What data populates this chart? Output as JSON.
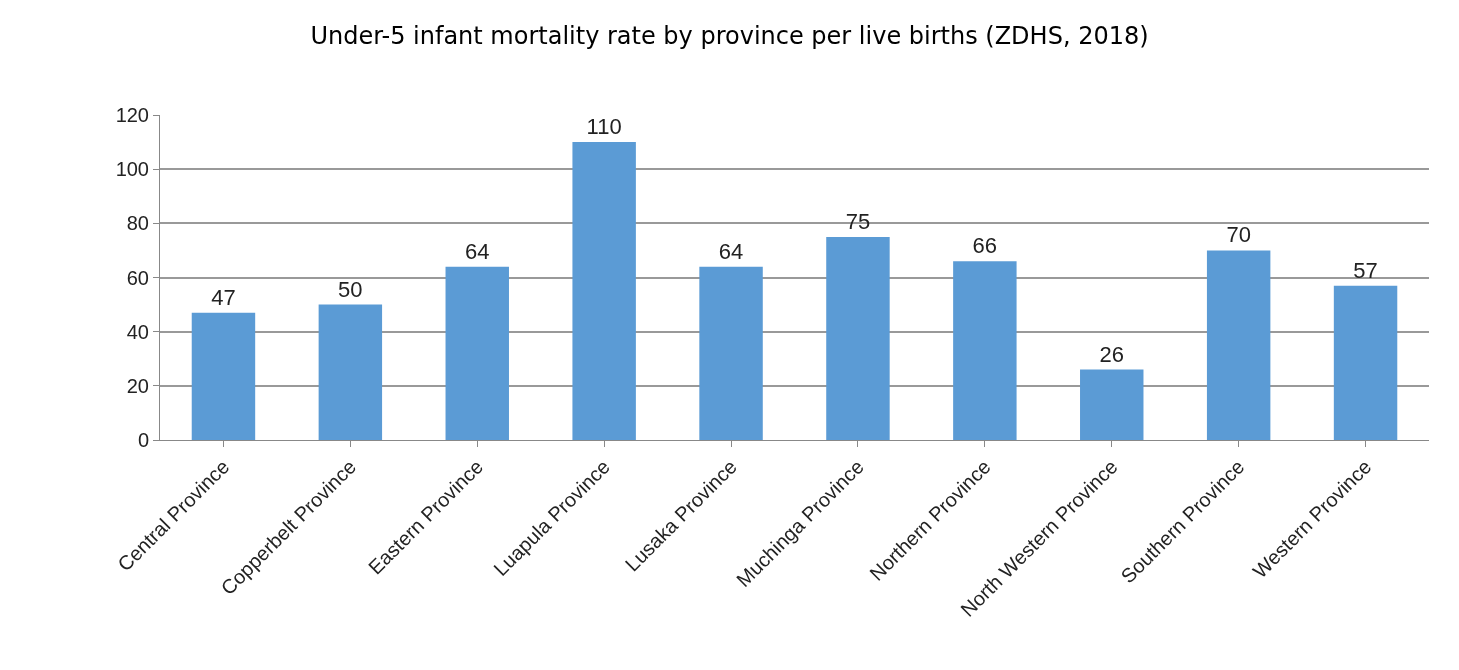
{
  "chart_data": {
    "type": "bar",
    "title": "Under-5 infant mortality rate by province per live births (ZDHS, 2018)",
    "categories": [
      "Central Province",
      "Copperbelt Province",
      "Eastern Province",
      "Luapula Province",
      "Lusaka Province",
      "Muchinga Province",
      "Northern Province",
      "North Western Province",
      "Southern Province",
      "Western Province"
    ],
    "values": [
      47,
      50,
      64,
      110,
      64,
      75,
      66,
      26,
      70,
      57
    ],
    "color": "#5b9bd5",
    "ylim": [
      0,
      120
    ],
    "yticks": [
      0,
      20,
      40,
      60,
      80,
      100,
      120
    ],
    "grid": "y",
    "data_labels": true
  }
}
